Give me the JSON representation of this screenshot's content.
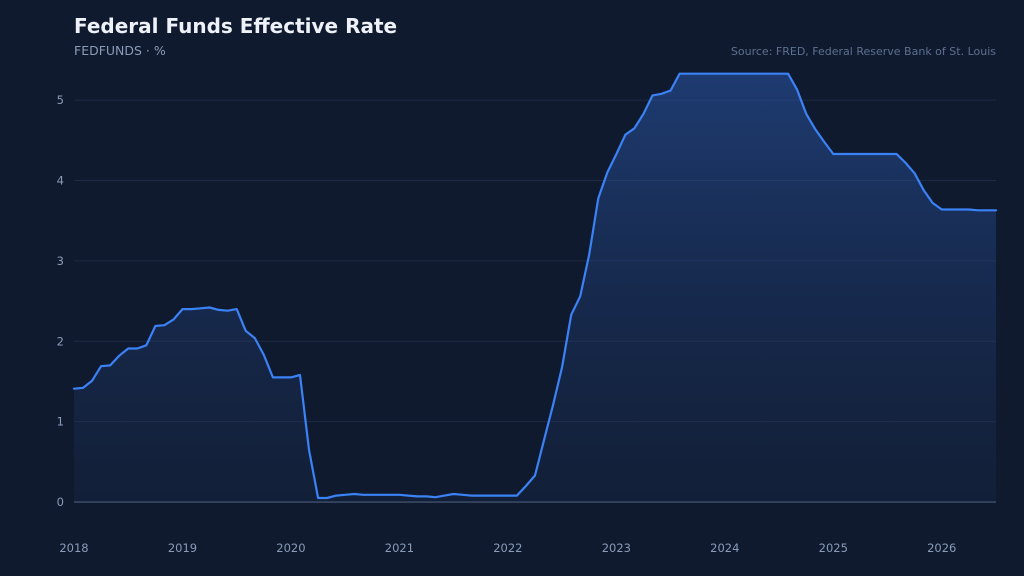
{
  "header": {
    "title": "Federal Funds Effective Rate",
    "subtitle": "FEDFUNDS · %",
    "source": "Source: FRED, Federal Reserve Bank of St. Louis"
  },
  "colors": {
    "background": "#0f1a2e",
    "line": "#3b82f6",
    "grid": "#1e2b45",
    "axis": "#4a5a78",
    "tick_text": "#8a9bb8"
  },
  "chart_data": {
    "type": "area",
    "title": "Federal Funds Effective Rate",
    "subtitle": "FEDFUNDS · %",
    "xlabel": "",
    "ylabel": "",
    "xlim": [
      2018.0,
      2026.5
    ],
    "ylim": [
      0,
      5.5
    ],
    "grid": true,
    "x_ticks": [
      "2018",
      "2019",
      "2020",
      "2021",
      "2022",
      "2023",
      "2024",
      "2025",
      "2026"
    ],
    "y_ticks": [
      0,
      1,
      2,
      3,
      4,
      5
    ],
    "series": [
      {
        "x": [
          "2018-01",
          "2018-02",
          "2018-03",
          "2018-04",
          "2018-05",
          "2018-06",
          "2018-07",
          "2018-08",
          "2018-09",
          "2018-10",
          "2018-11",
          "2018-12",
          "2019-01",
          "2019-02",
          "2019-03",
          "2019-04",
          "2019-05",
          "2019-06",
          "2019-07",
          "2019-08",
          "2019-09",
          "2019-10",
          "2019-11",
          "2019-12",
          "2020-01",
          "2020-02",
          "2020-03",
          "2020-04",
          "2020-05",
          "2020-06",
          "2020-07",
          "2020-08",
          "2020-09",
          "2020-10",
          "2020-11",
          "2020-12",
          "2021-01",
          "2021-02",
          "2021-03",
          "2021-04",
          "2021-05",
          "2021-06",
          "2021-07",
          "2021-08",
          "2021-09",
          "2021-10",
          "2021-11",
          "2021-12",
          "2022-01",
          "2022-02",
          "2022-03",
          "2022-04",
          "2022-05",
          "2022-06",
          "2022-07",
          "2022-08",
          "2022-09",
          "2022-10",
          "2022-11",
          "2022-12",
          "2023-01",
          "2023-02",
          "2023-03",
          "2023-04",
          "2023-05",
          "2023-06",
          "2023-07",
          "2023-08",
          "2023-09",
          "2023-10",
          "2023-11",
          "2023-12",
          "2024-01",
          "2024-02",
          "2024-03",
          "2024-04",
          "2024-05",
          "2024-06",
          "2024-07",
          "2024-08",
          "2024-09",
          "2024-10",
          "2024-11",
          "2024-12",
          "2025-01",
          "2025-02",
          "2025-03",
          "2025-04",
          "2025-05",
          "2025-06",
          "2025-07",
          "2025-08",
          "2025-09",
          "2025-10",
          "2025-11",
          "2025-12",
          "2026-01",
          "2026-02",
          "2026-03",
          "2026-04",
          "2026-05",
          "2026-06",
          "2026-07"
        ],
        "values": [
          1.41,
          1.42,
          1.51,
          1.69,
          1.7,
          1.82,
          1.91,
          1.91,
          1.95,
          2.19,
          2.2,
          2.27,
          2.4,
          2.4,
          2.41,
          2.42,
          2.39,
          2.38,
          2.4,
          2.13,
          2.04,
          1.83,
          1.55,
          1.55,
          1.55,
          1.58,
          0.65,
          0.05,
          0.05,
          0.08,
          0.09,
          0.1,
          0.09,
          0.09,
          0.09,
          0.09,
          0.09,
          0.08,
          0.07,
          0.07,
          0.06,
          0.08,
          0.1,
          0.09,
          0.08,
          0.08,
          0.08,
          0.08,
          0.08,
          0.08,
          0.2,
          0.33,
          0.77,
          1.21,
          1.68,
          2.33,
          2.56,
          3.08,
          3.78,
          4.1,
          4.33,
          4.57,
          4.65,
          4.83,
          5.06,
          5.08,
          5.12,
          5.33,
          5.33,
          5.33,
          5.33,
          5.33,
          5.33,
          5.33,
          5.33,
          5.33,
          5.33,
          5.33,
          5.33,
          5.33,
          5.13,
          4.83,
          4.64,
          4.48,
          4.33,
          4.33,
          4.33,
          4.33,
          4.33,
          4.33,
          4.33,
          4.33,
          4.22,
          4.09,
          3.88,
          3.72,
          3.64,
          3.64,
          3.64,
          3.64,
          3.63,
          3.63,
          3.63
        ]
      }
    ]
  }
}
